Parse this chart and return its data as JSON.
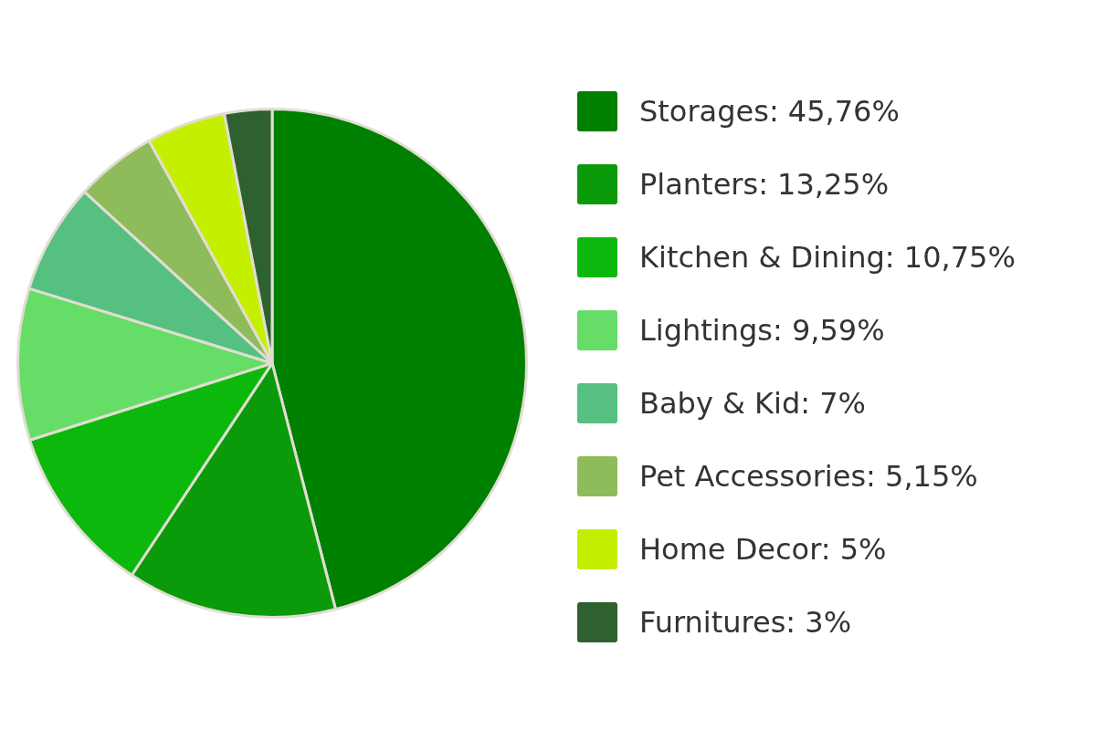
{
  "chart_data": {
    "type": "pie",
    "categories": [
      "Storages",
      "Planters",
      "Kitchen & Dining",
      "Lightings",
      "Baby & Kid",
      "Pet Accessories",
      "Home Decor",
      "Furnitures"
    ],
    "values": [
      45.76,
      13.25,
      10.75,
      9.59,
      7,
      5.15,
      5,
      3
    ],
    "value_labels": [
      "45,76%",
      "13,25%",
      "10,75%",
      "9,59%",
      "7%",
      "5,15%",
      "5%",
      "3%"
    ],
    "colors": [
      "#008000",
      "#0a9a0a",
      "#0cb80c",
      "#66dd66",
      "#55c080",
      "#8ebc5a",
      "#c4f000",
      "#2f6030"
    ],
    "legend": "right"
  }
}
